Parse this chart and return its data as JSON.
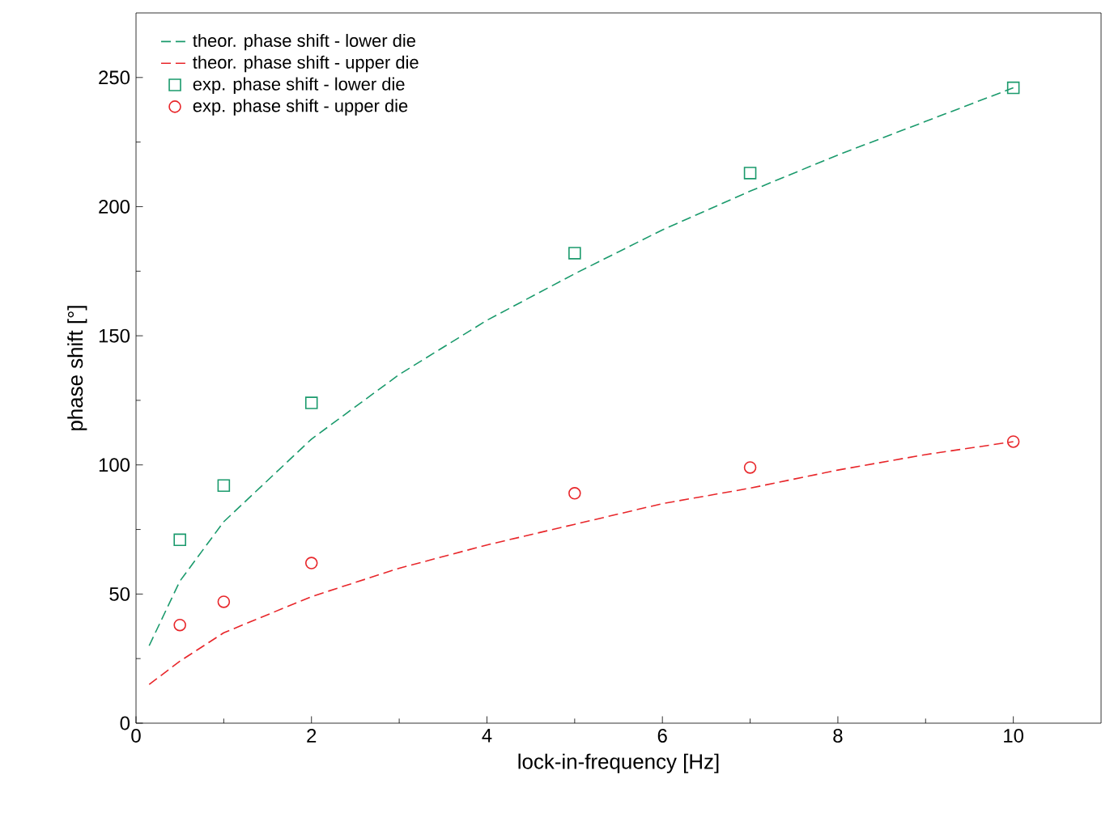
{
  "chart_data": {
    "type": "line",
    "xlabel": "lock-in-frequency [Hz]",
    "ylabel": "phase shift [°]",
    "xlim": [
      0,
      11
    ],
    "ylim": [
      0,
      275
    ],
    "xticks": [
      0,
      2,
      4,
      6,
      8,
      10
    ],
    "yticks": [
      0,
      50,
      100,
      150,
      200,
      250
    ],
    "grid": false,
    "legend": "top left",
    "series": [
      {
        "name": "theor. phase shift - lower die",
        "line_style": "dashed",
        "marker": "none",
        "color": "#1a9a6c",
        "x": [
          0.15,
          0.5,
          1,
          2,
          3,
          4,
          5,
          6,
          7,
          8,
          9,
          10
        ],
        "values": [
          30,
          55,
          78,
          110,
          135,
          156,
          174,
          191,
          206,
          220,
          233,
          246
        ]
      },
      {
        "name": "theor. phase shift - upper die",
        "line_style": "dashed",
        "marker": "none",
        "color": "#e8262a",
        "x": [
          0.15,
          0.5,
          1,
          2,
          3,
          4,
          5,
          6,
          7,
          8,
          9,
          10
        ],
        "values": [
          15,
          24,
          35,
          49,
          60,
          69,
          77,
          85,
          91,
          98,
          104,
          109
        ]
      },
      {
        "name": "exp. phase shift - lower die",
        "type": "scatter",
        "marker": "square",
        "color": "#1a9a6c",
        "x": [
          0.5,
          1,
          2,
          5,
          7,
          10
        ],
        "values": [
          71,
          92,
          124,
          182,
          213,
          246
        ]
      },
      {
        "name": "exp. phase shift - upper die",
        "type": "scatter",
        "marker": "circle",
        "color": "#e8262a",
        "x": [
          0.5,
          1,
          2,
          5,
          7,
          10
        ],
        "values": [
          38,
          47,
          62,
          89,
          99,
          109
        ]
      }
    ]
  }
}
